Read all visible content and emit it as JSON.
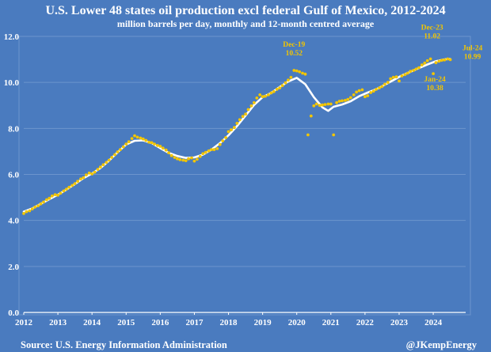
{
  "chart_data": {
    "type": "line",
    "title": "U.S. Lower 48 states oil production excl federal Gulf of Mexico, 2012-2024",
    "subtitle": "million barrels per day, monthly and 12-month centred average",
    "xlabel": "",
    "ylabel": "",
    "xlim": [
      2012,
      2024.95
    ],
    "ylim": [
      0,
      12
    ],
    "x_ticks": [
      "2012",
      "2013",
      "2014",
      "2015",
      "2016",
      "2017",
      "2018",
      "2019",
      "2020",
      "2021",
      "2022",
      "2023",
      "2024"
    ],
    "y_ticks": [
      "0.0",
      "2.0",
      "4.0",
      "6.0",
      "8.0",
      "10.0",
      "12.0"
    ],
    "grid": "horizontal",
    "legend": "none",
    "colors": {
      "background": "#4a7bbf",
      "frame": "#6c95cd",
      "monthly": "#f2c500",
      "average": "#ffffff",
      "annotation": "#f2c500",
      "text": "#ffffff"
    },
    "series": [
      {
        "style": "points",
        "values": [
          [
            2012.0,
            4.3
          ],
          [
            2012.08,
            4.38
          ],
          [
            2012.17,
            4.42
          ],
          [
            2012.25,
            4.5
          ],
          [
            2012.33,
            4.58
          ],
          [
            2012.42,
            4.64
          ],
          [
            2012.5,
            4.72
          ],
          [
            2012.58,
            4.8
          ],
          [
            2012.67,
            4.9
          ],
          [
            2012.75,
            4.96
          ],
          [
            2012.83,
            5.06
          ],
          [
            2012.92,
            5.12
          ],
          [
            2013.0,
            5.1
          ],
          [
            2013.08,
            5.18
          ],
          [
            2013.17,
            5.28
          ],
          [
            2013.25,
            5.36
          ],
          [
            2013.33,
            5.44
          ],
          [
            2013.42,
            5.52
          ],
          [
            2013.5,
            5.6
          ],
          [
            2013.58,
            5.7
          ],
          [
            2013.67,
            5.8
          ],
          [
            2013.75,
            5.86
          ],
          [
            2013.83,
            5.98
          ],
          [
            2013.92,
            6.06
          ],
          [
            2014.0,
            6.02
          ],
          [
            2014.08,
            6.1
          ],
          [
            2014.17,
            6.22
          ],
          [
            2014.25,
            6.32
          ],
          [
            2014.33,
            6.42
          ],
          [
            2014.42,
            6.52
          ],
          [
            2014.5,
            6.62
          ],
          [
            2014.58,
            6.74
          ],
          [
            2014.67,
            6.86
          ],
          [
            2014.75,
            6.98
          ],
          [
            2014.83,
            7.08
          ],
          [
            2014.92,
            7.2
          ],
          [
            2015.0,
            7.32
          ],
          [
            2015.08,
            7.42
          ],
          [
            2015.17,
            7.56
          ],
          [
            2015.25,
            7.68
          ],
          [
            2015.33,
            7.62
          ],
          [
            2015.42,
            7.58
          ],
          [
            2015.5,
            7.54
          ],
          [
            2015.58,
            7.48
          ],
          [
            2015.67,
            7.4
          ],
          [
            2015.75,
            7.38
          ],
          [
            2015.83,
            7.32
          ],
          [
            2015.92,
            7.26
          ],
          [
            2016.0,
            7.22
          ],
          [
            2016.08,
            7.14
          ],
          [
            2016.17,
            7.06
          ],
          [
            2016.25,
            6.94
          ],
          [
            2016.33,
            6.82
          ],
          [
            2016.42,
            6.74
          ],
          [
            2016.5,
            6.68
          ],
          [
            2016.58,
            6.64
          ],
          [
            2016.67,
            6.62
          ],
          [
            2016.75,
            6.6
          ],
          [
            2016.83,
            6.68
          ],
          [
            2016.92,
            6.72
          ],
          [
            2017.0,
            6.58
          ],
          [
            2017.08,
            6.66
          ],
          [
            2017.17,
            6.78
          ],
          [
            2017.25,
            6.9
          ],
          [
            2017.33,
            6.96
          ],
          [
            2017.42,
            7.02
          ],
          [
            2017.5,
            7.08
          ],
          [
            2017.58,
            7.08
          ],
          [
            2017.67,
            7.12
          ],
          [
            2017.75,
            7.3
          ],
          [
            2017.83,
            7.46
          ],
          [
            2017.92,
            7.6
          ],
          [
            2018.0,
            7.86
          ],
          [
            2018.08,
            7.94
          ],
          [
            2018.17,
            8.04
          ],
          [
            2018.25,
            8.22
          ],
          [
            2018.33,
            8.38
          ],
          [
            2018.42,
            8.52
          ],
          [
            2018.5,
            8.62
          ],
          [
            2018.58,
            8.82
          ],
          [
            2018.67,
            8.98
          ],
          [
            2018.75,
            9.12
          ],
          [
            2018.83,
            9.32
          ],
          [
            2018.92,
            9.46
          ],
          [
            2019.0,
            9.38
          ],
          [
            2019.08,
            9.4
          ],
          [
            2019.17,
            9.46
          ],
          [
            2019.25,
            9.54
          ],
          [
            2019.33,
            9.6
          ],
          [
            2019.42,
            9.7
          ],
          [
            2019.5,
            9.76
          ],
          [
            2019.58,
            9.86
          ],
          [
            2019.67,
            9.98
          ],
          [
            2019.75,
            10.1
          ],
          [
            2019.83,
            10.22
          ],
          [
            2019.92,
            10.52
          ],
          [
            2020.0,
            10.5
          ],
          [
            2020.08,
            10.46
          ],
          [
            2020.17,
            10.4
          ],
          [
            2020.25,
            10.36
          ],
          [
            2020.33,
            7.72
          ],
          [
            2020.42,
            8.54
          ],
          [
            2020.5,
            8.98
          ],
          [
            2020.58,
            9.06
          ],
          [
            2020.67,
            9.0
          ],
          [
            2020.75,
            9.02
          ],
          [
            2020.83,
            9.04
          ],
          [
            2020.92,
            9.06
          ],
          [
            2021.0,
            9.06
          ],
          [
            2021.08,
            7.72
          ],
          [
            2021.17,
            9.12
          ],
          [
            2021.25,
            9.18
          ],
          [
            2021.33,
            9.2
          ],
          [
            2021.42,
            9.22
          ],
          [
            2021.5,
            9.26
          ],
          [
            2021.58,
            9.34
          ],
          [
            2021.67,
            9.46
          ],
          [
            2021.75,
            9.58
          ],
          [
            2021.83,
            9.64
          ],
          [
            2021.92,
            9.68
          ],
          [
            2022.0,
            9.38
          ],
          [
            2022.08,
            9.42
          ],
          [
            2022.17,
            9.56
          ],
          [
            2022.25,
            9.62
          ],
          [
            2022.33,
            9.7
          ],
          [
            2022.42,
            9.76
          ],
          [
            2022.5,
            9.82
          ],
          [
            2022.58,
            9.92
          ],
          [
            2022.67,
            10.0
          ],
          [
            2022.75,
            10.16
          ],
          [
            2022.83,
            10.22
          ],
          [
            2022.92,
            10.24
          ],
          [
            2023.0,
            10.06
          ],
          [
            2023.08,
            10.28
          ],
          [
            2023.17,
            10.34
          ],
          [
            2023.25,
            10.4
          ],
          [
            2023.33,
            10.48
          ],
          [
            2023.42,
            10.52
          ],
          [
            2023.5,
            10.58
          ],
          [
            2023.58,
            10.64
          ],
          [
            2023.67,
            10.76
          ],
          [
            2023.75,
            10.84
          ],
          [
            2023.83,
            10.94
          ],
          [
            2023.92,
            11.02
          ],
          [
            2024.0,
            10.38
          ],
          [
            2024.08,
            10.86
          ],
          [
            2024.17,
            10.92
          ],
          [
            2024.25,
            10.96
          ],
          [
            2024.33,
            10.98
          ],
          [
            2024.42,
            11.02
          ],
          [
            2024.5,
            10.99
          ]
        ]
      },
      {
        "style": "line",
        "values": [
          [
            2012.0,
            4.38
          ],
          [
            2012.25,
            4.52
          ],
          [
            2012.5,
            4.72
          ],
          [
            2012.75,
            4.92
          ],
          [
            2013.0,
            5.12
          ],
          [
            2013.25,
            5.34
          ],
          [
            2013.5,
            5.58
          ],
          [
            2013.75,
            5.84
          ],
          [
            2014.0,
            6.04
          ],
          [
            2014.25,
            6.28
          ],
          [
            2014.5,
            6.6
          ],
          [
            2014.75,
            6.96
          ],
          [
            2015.0,
            7.3
          ],
          [
            2015.25,
            7.46
          ],
          [
            2015.5,
            7.48
          ],
          [
            2015.75,
            7.36
          ],
          [
            2016.0,
            7.14
          ],
          [
            2016.25,
            6.94
          ],
          [
            2016.5,
            6.8
          ],
          [
            2016.75,
            6.72
          ],
          [
            2017.0,
            6.74
          ],
          [
            2017.25,
            6.86
          ],
          [
            2017.5,
            7.08
          ],
          [
            2017.75,
            7.36
          ],
          [
            2018.0,
            7.7
          ],
          [
            2018.25,
            8.1
          ],
          [
            2018.5,
            8.56
          ],
          [
            2018.75,
            9.02
          ],
          [
            2019.0,
            9.36
          ],
          [
            2019.25,
            9.54
          ],
          [
            2019.5,
            9.8
          ],
          [
            2019.75,
            10.04
          ],
          [
            2020.0,
            10.2
          ],
          [
            2020.25,
            9.92
          ],
          [
            2020.5,
            9.36
          ],
          [
            2020.75,
            8.92
          ],
          [
            2020.92,
            8.76
          ],
          [
            2021.08,
            8.94
          ],
          [
            2021.33,
            9.04
          ],
          [
            2021.58,
            9.18
          ],
          [
            2021.83,
            9.4
          ],
          [
            2022.08,
            9.56
          ],
          [
            2022.33,
            9.7
          ],
          [
            2022.58,
            9.9
          ],
          [
            2022.83,
            10.1
          ],
          [
            2023.08,
            10.3
          ],
          [
            2023.33,
            10.46
          ],
          [
            2023.58,
            10.62
          ],
          [
            2023.83,
            10.78
          ],
          [
            2024.08,
            10.92
          ],
          [
            2024.33,
            11.0
          ],
          [
            2024.5,
            11.02
          ]
        ]
      }
    ],
    "annotations": [
      {
        "label": "Dec-19",
        "value": "10.52",
        "x": 2019.92,
        "y": 10.52
      },
      {
        "label": "Dec-23",
        "value": "11.02",
        "x": 2023.92,
        "y": 11.02
      },
      {
        "label": "Jan-24",
        "value": "10.38",
        "x": 2024.0,
        "y": 10.38
      },
      {
        "label": "Jul-24",
        "value": "10.99",
        "x": 2024.5,
        "y": 10.99
      }
    ]
  },
  "footer": {
    "source": "Source:  U.S. Energy Information Administration",
    "credit": "@JKempEnergy"
  }
}
